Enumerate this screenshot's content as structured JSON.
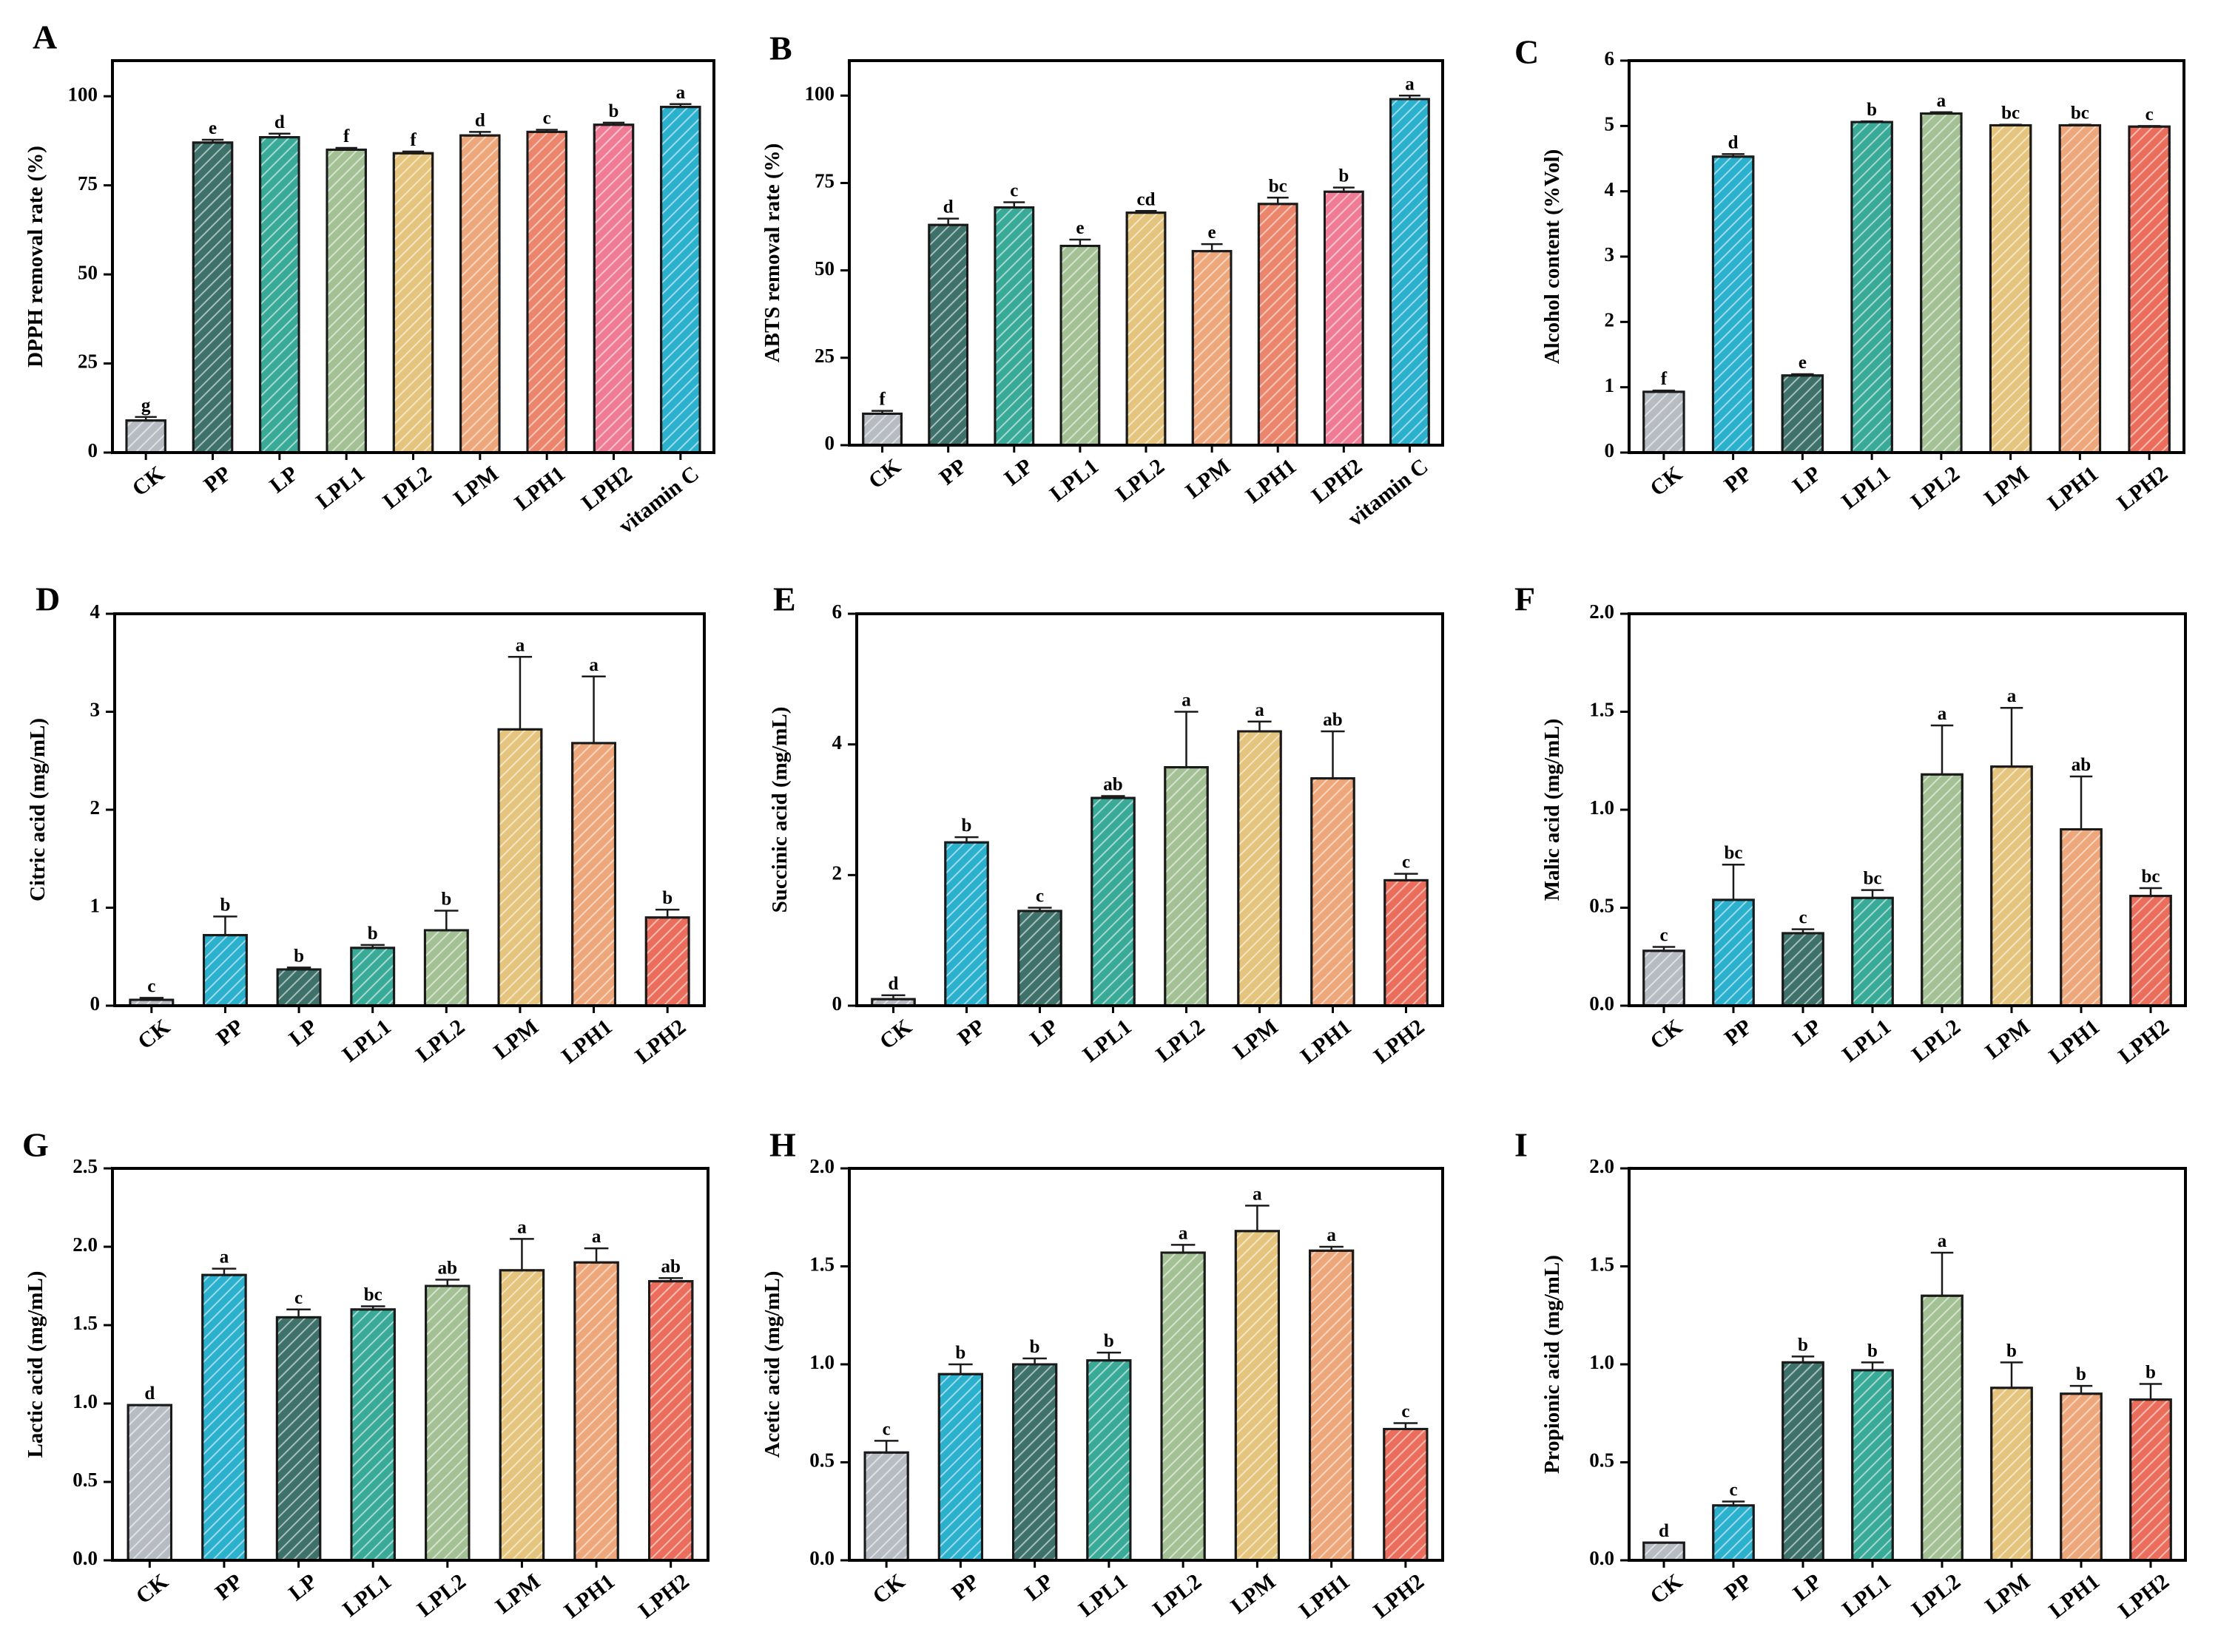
{
  "figure": {
    "background": "#ffffff"
  },
  "hatch": {
    "line_color": "rgba(255,255,255,0.55)"
  },
  "chart_data": [
    {
      "panel": "A",
      "type": "bar",
      "ylabel": "DPPH removal rate (%)",
      "ylim": [
        0,
        110
      ],
      "yticks": [
        0,
        25,
        50,
        75,
        100
      ],
      "ytick_labels": [
        "0",
        "25",
        "50",
        "75",
        "100"
      ],
      "categories": [
        "CK",
        "PP",
        "LP",
        "LPL1",
        "LPL2",
        "LPM",
        "LPH1",
        "LPH2",
        "vitamin C"
      ],
      "values": [
        9,
        87,
        88.5,
        85,
        84,
        89,
        90,
        92,
        97
      ],
      "errors": [
        1,
        0.8,
        1,
        0.5,
        0.5,
        1,
        0.6,
        0.6,
        0.8
      ],
      "significance": [
        "g",
        "e",
        "d",
        "f",
        "f",
        "d",
        "c",
        "b",
        "a"
      ],
      "colors": [
        "#b7bcc3",
        "#3d716a",
        "#3aaa98",
        "#a3c194",
        "#e5c57e",
        "#eea77b",
        "#eb866d",
        "#ef7b95",
        "#2bb0cd"
      ]
    },
    {
      "panel": "B",
      "type": "bar",
      "ylabel": "ABTS removal rate (%)",
      "ylim": [
        0,
        110
      ],
      "yticks": [
        0,
        25,
        50,
        75,
        100
      ],
      "ytick_labels": [
        "0",
        "25",
        "50",
        "75",
        "100"
      ],
      "categories": [
        "CK",
        "PP",
        "LP",
        "LPL1",
        "LPL2",
        "LPM",
        "LPH1",
        "LPH2",
        "vitamin C"
      ],
      "values": [
        9,
        63,
        68,
        57,
        66.5,
        55.5,
        69,
        72.5,
        99
      ],
      "errors": [
        0.8,
        1.8,
        1.5,
        1.8,
        0.5,
        2,
        1.8,
        1.2,
        1
      ],
      "significance": [
        "f",
        "d",
        "c",
        "e",
        "cd",
        "e",
        "bc",
        "b",
        "a"
      ],
      "colors": [
        "#b7bcc3",
        "#3d716a",
        "#3aaa98",
        "#a3c194",
        "#e5c57e",
        "#eea77b",
        "#eb866d",
        "#ef7b95",
        "#2bb0cd"
      ]
    },
    {
      "panel": "C",
      "type": "bar",
      "ylabel": "Alcohol content (%Vol)",
      "ylim": [
        0,
        6
      ],
      "yticks": [
        0,
        1,
        2,
        3,
        4,
        5,
        6
      ],
      "ytick_labels": [
        "0",
        "1",
        "2",
        "3",
        "4",
        "5",
        "6"
      ],
      "categories": [
        "CK",
        "PP",
        "LP",
        "LPL1",
        "LPL2",
        "LPM",
        "LPH1",
        "LPH2"
      ],
      "values": [
        0.93,
        4.53,
        1.18,
        5.06,
        5.19,
        5.01,
        5.01,
        4.99
      ],
      "errors": [
        0.02,
        0.04,
        0.02,
        0.01,
        0.02,
        0.01,
        0.01,
        0.01
      ],
      "significance": [
        "f",
        "d",
        "e",
        "b",
        "a",
        "bc",
        "bc",
        "c"
      ],
      "colors": [
        "#b7bcc3",
        "#2bb0cd",
        "#3d716a",
        "#3aaa98",
        "#a3c194",
        "#e5c57e",
        "#eea77b",
        "#eb6d5b"
      ]
    },
    {
      "panel": "D",
      "type": "bar",
      "ylabel": "Citric acid (mg/mL)",
      "ylim": [
        0,
        4
      ],
      "yticks": [
        0,
        1,
        2,
        3,
        4
      ],
      "ytick_labels": [
        "0",
        "1",
        "2",
        "3",
        "4"
      ],
      "categories": [
        "CK",
        "PP",
        "LP",
        "LPL1",
        "LPL2",
        "LPM",
        "LPH1",
        "LPH2"
      ],
      "values": [
        0.06,
        0.72,
        0.37,
        0.59,
        0.77,
        2.82,
        2.68,
        0.9
      ],
      "errors": [
        0.02,
        0.19,
        0.02,
        0.03,
        0.2,
        0.74,
        0.68,
        0.08
      ],
      "significance": [
        "c",
        "b",
        "b",
        "b",
        "b",
        "a",
        "a",
        "b"
      ],
      "colors": [
        "#b7bcc3",
        "#2bb0cd",
        "#3d716a",
        "#3aaa98",
        "#a3c194",
        "#e5c57e",
        "#eea77b",
        "#eb6d5b"
      ]
    },
    {
      "panel": "E",
      "type": "bar",
      "ylabel": "Succinic acid (mg/mL)",
      "ylim": [
        0,
        6
      ],
      "yticks": [
        0,
        2,
        4,
        6
      ],
      "ytick_labels": [
        "0",
        "2",
        "4",
        "6"
      ],
      "categories": [
        "CK",
        "PP",
        "LP",
        "LPL1",
        "LPL2",
        "LPM",
        "LPH1",
        "LPH2"
      ],
      "values": [
        0.1,
        2.5,
        1.45,
        3.18,
        3.65,
        4.2,
        3.48,
        1.92
      ],
      "errors": [
        0.06,
        0.08,
        0.05,
        0.03,
        0.85,
        0.15,
        0.72,
        0.1
      ],
      "significance": [
        "d",
        "b",
        "c",
        "ab",
        "a",
        "a",
        "ab",
        "c"
      ],
      "colors": [
        "#b7bcc3",
        "#2bb0cd",
        "#3d716a",
        "#3aaa98",
        "#a3c194",
        "#e5c57e",
        "#eea77b",
        "#eb6d5b"
      ]
    },
    {
      "panel": "F",
      "type": "bar",
      "ylabel": "Malic acid (mg/mL)",
      "ylim": [
        0,
        2
      ],
      "yticks": [
        0,
        0.5,
        1,
        1.5,
        2
      ],
      "ytick_labels": [
        "0.0",
        "0.5",
        "1.0",
        "1.5",
        "2.0"
      ],
      "categories": [
        "CK",
        "PP",
        "LP",
        "LPL1",
        "LPL2",
        "LPM",
        "LPH1",
        "LPH2"
      ],
      "values": [
        0.28,
        0.54,
        0.37,
        0.55,
        1.18,
        1.22,
        0.9,
        0.56
      ],
      "errors": [
        0.02,
        0.18,
        0.02,
        0.04,
        0.25,
        0.3,
        0.27,
        0.04
      ],
      "significance": [
        "c",
        "bc",
        "c",
        "bc",
        "a",
        "a",
        "ab",
        "bc"
      ],
      "colors": [
        "#b7bcc3",
        "#2bb0cd",
        "#3d716a",
        "#3aaa98",
        "#a3c194",
        "#e5c57e",
        "#eea77b",
        "#eb6d5b"
      ]
    },
    {
      "panel": "G",
      "type": "bar",
      "ylabel": "Lactic acid (mg/mL)",
      "ylim": [
        0,
        2.5
      ],
      "yticks": [
        0,
        0.5,
        1,
        1.5,
        2,
        2.5
      ],
      "ytick_labels": [
        "0.0",
        "0.5",
        "1.0",
        "1.5",
        "2.0",
        "2.5"
      ],
      "categories": [
        "CK",
        "PP",
        "LP",
        "LPL1",
        "LPL2",
        "LPM",
        "LPH1",
        "LPH2"
      ],
      "values": [
        0.99,
        1.82,
        1.55,
        1.6,
        1.75,
        1.85,
        1.9,
        1.78
      ],
      "errors": [
        0,
        0.04,
        0.05,
        0.02,
        0.04,
        0.2,
        0.09,
        0.02
      ],
      "significance": [
        "d",
        "a",
        "c",
        "bc",
        "ab",
        "a",
        "a",
        "ab"
      ],
      "colors": [
        "#b7bcc3",
        "#2bb0cd",
        "#3d716a",
        "#3aaa98",
        "#a3c194",
        "#e5c57e",
        "#eea77b",
        "#eb6d5b"
      ]
    },
    {
      "panel": "H",
      "type": "bar",
      "ylabel": "Acetic acid (mg/mL)",
      "ylim": [
        0,
        2
      ],
      "yticks": [
        0,
        0.5,
        1,
        1.5,
        2
      ],
      "ytick_labels": [
        "0.0",
        "0.5",
        "1.0",
        "1.5",
        "2.0"
      ],
      "categories": [
        "CK",
        "PP",
        "LP",
        "LPL1",
        "LPL2",
        "LPM",
        "LPH1",
        "LPH2"
      ],
      "values": [
        0.55,
        0.95,
        1.0,
        1.02,
        1.57,
        1.68,
        1.58,
        0.67
      ],
      "errors": [
        0.06,
        0.05,
        0.03,
        0.04,
        0.04,
        0.13,
        0.02,
        0.03
      ],
      "significance": [
        "c",
        "b",
        "b",
        "b",
        "a",
        "a",
        "a",
        "c"
      ],
      "colors": [
        "#b7bcc3",
        "#2bb0cd",
        "#3d716a",
        "#3aaa98",
        "#a3c194",
        "#e5c57e",
        "#eea77b",
        "#eb6d5b"
      ]
    },
    {
      "panel": "I",
      "type": "bar",
      "ylabel": "Propionic acid (mg/mL)",
      "ylim": [
        0,
        2
      ],
      "yticks": [
        0,
        0.5,
        1,
        1.5,
        2
      ],
      "ytick_labels": [
        "0.0",
        "0.5",
        "1.0",
        "1.5",
        "2.0"
      ],
      "categories": [
        "CK",
        "PP",
        "LP",
        "LPL1",
        "LPL2",
        "LPM",
        "LPH1",
        "LPH2"
      ],
      "values": [
        0.09,
        0.28,
        1.01,
        0.97,
        1.35,
        0.88,
        0.85,
        0.82
      ],
      "errors": [
        0,
        0.02,
        0.03,
        0.04,
        0.22,
        0.13,
        0.04,
        0.08
      ],
      "significance": [
        "d",
        "c",
        "b",
        "b",
        "a",
        "b",
        "b",
        "b"
      ],
      "colors": [
        "#b7bcc3",
        "#2bb0cd",
        "#3d716a",
        "#3aaa98",
        "#a3c194",
        "#e5c57e",
        "#eea77b",
        "#eb6d5b"
      ]
    }
  ]
}
